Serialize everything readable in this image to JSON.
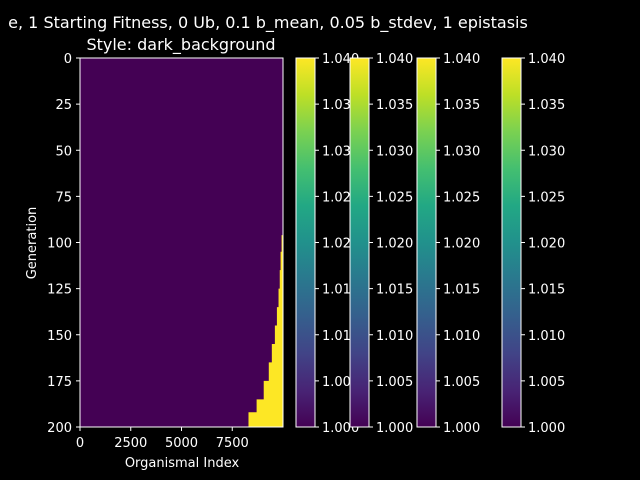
{
  "chart_data": {
    "type": "heatmap",
    "title_line1": "e, 1 Starting Fitness, 0 Ub, 0.1 b_mean, 0.05 b_stdev, 1 epistasis",
    "title_line2": "Style: dark_background",
    "xlabel": "Organismal Index",
    "ylabel": "Generation",
    "xlim": [
      0,
      10000
    ],
    "ylim": [
      200,
      0
    ],
    "xticks": [
      "0",
      "2500",
      "5000",
      "7500"
    ],
    "yticks": [
      "0",
      "25",
      "50",
      "75",
      "100",
      "125",
      "150",
      "175",
      "200"
    ],
    "background_value": 1.0,
    "filled_value": 1.04,
    "fixation_front": [
      {
        "generation": 96,
        "first_index": 9930
      },
      {
        "generation": 105,
        "first_index": 9880
      },
      {
        "generation": 115,
        "first_index": 9840
      },
      {
        "generation": 125,
        "first_index": 9780
      },
      {
        "generation": 135,
        "first_index": 9700
      },
      {
        "generation": 145,
        "first_index": 9600
      },
      {
        "generation": 155,
        "first_index": 9450
      },
      {
        "generation": 165,
        "first_index": 9300
      },
      {
        "generation": 175,
        "first_index": 9050
      },
      {
        "generation": 185,
        "first_index": 8700
      },
      {
        "generation": 192,
        "first_index": 8300
      },
      {
        "generation": 200,
        "first_index": 7800
      }
    ],
    "colorbars": [
      {
        "ticks": [
          "1.000",
          "1.005",
          "1.010",
          "1.015",
          "1.020",
          "1.025",
          "1.030",
          "1.035",
          "1.040"
        ]
      },
      {
        "ticks": [
          "1.000",
          "1.005",
          "1.010",
          "1.015",
          "1.020",
          "1.025",
          "1.030",
          "1.035",
          "1.040"
        ]
      },
      {
        "ticks": [
          "1.000",
          "1.005",
          "1.010",
          "1.015",
          "1.020",
          "1.025",
          "1.030",
          "1.035",
          "1.040"
        ]
      },
      {
        "ticks": [
          "1.000",
          "1.005",
          "1.010",
          "1.015",
          "1.020",
          "1.025",
          "1.030",
          "1.035",
          "1.040"
        ]
      }
    ],
    "colorbar_range": [
      1.0,
      1.04
    ],
    "colormap": "viridis",
    "colors": {
      "low": "#440154",
      "high": "#fde725",
      "background": "#000000",
      "foreground": "#ffffff"
    },
    "grid": false
  }
}
